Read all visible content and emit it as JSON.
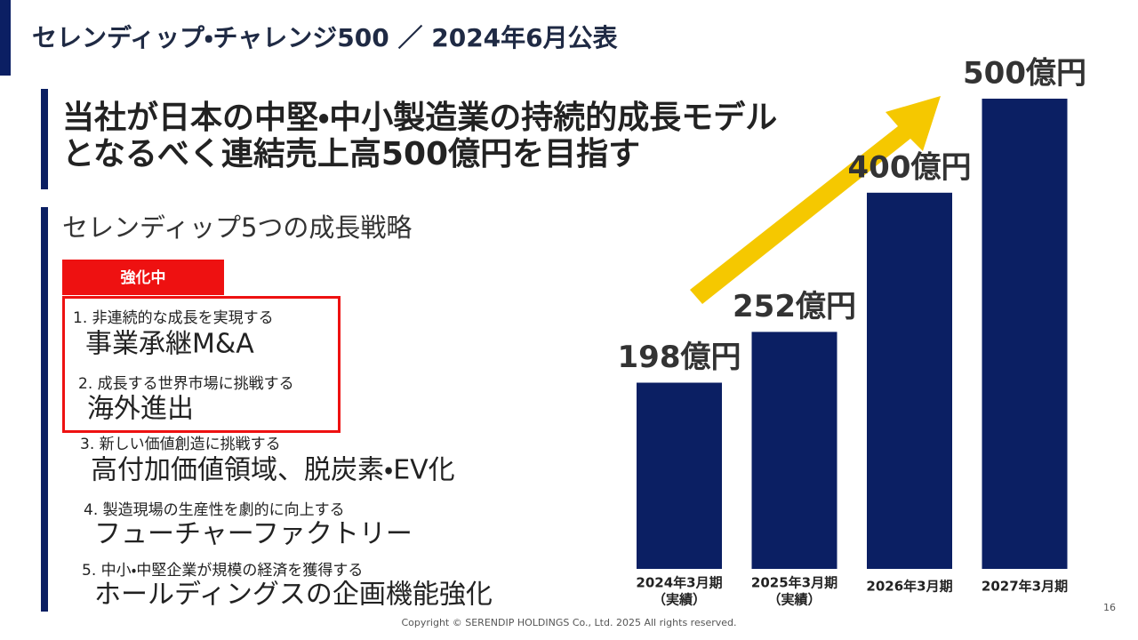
{
  "header": {
    "title": "セレンディップ・チャレンジ500 ／ 2024年6月公表"
  },
  "headline": [
    "当社が日本の中堅・中小製造業の持続的成長モデル",
    "となるべく連結売上高500億円を目指す"
  ],
  "strategies": {
    "title": "セレンディップ5つの成長戦略",
    "badge": "強化中",
    "items": [
      {
        "subtitle": "1. 非連続的な成長を実現する",
        "title": "事業承継M&A"
      },
      {
        "subtitle": "2. 成長する世界市場に挑戦する",
        "title": "海外進出"
      },
      {
        "subtitle": "3. 新しい価値創造に挑戦する",
        "title": "高付加価値領域、脱炭素・EV化"
      },
      {
        "subtitle": "4. 製造現場の生産性を劇的に向上する",
        "title": "フューチャーファクトリー"
      },
      {
        "subtitle": "5. 中小・中堅企業が規模の経済を獲得する",
        "title": "ホールディングスの企画機能強化"
      }
    ]
  },
  "chart_data": {
    "type": "bar",
    "categories": [
      "2024年3月期",
      "2025年3月期",
      "2026年3月期",
      "2027年3月期"
    ],
    "category_notes": [
      "（実績）",
      "（実績）",
      null,
      null
    ],
    "values": [
      198,
      252,
      400,
      500
    ],
    "value_labels": [
      "198億円",
      "252億円",
      "400億円",
      "500億円"
    ],
    "color": "#0b1f63"
  },
  "footer": {
    "copyright": "Copyright © SERENDIP HOLDINGS Co., Ltd.  2025 All rights reserved.",
    "page": "16"
  }
}
